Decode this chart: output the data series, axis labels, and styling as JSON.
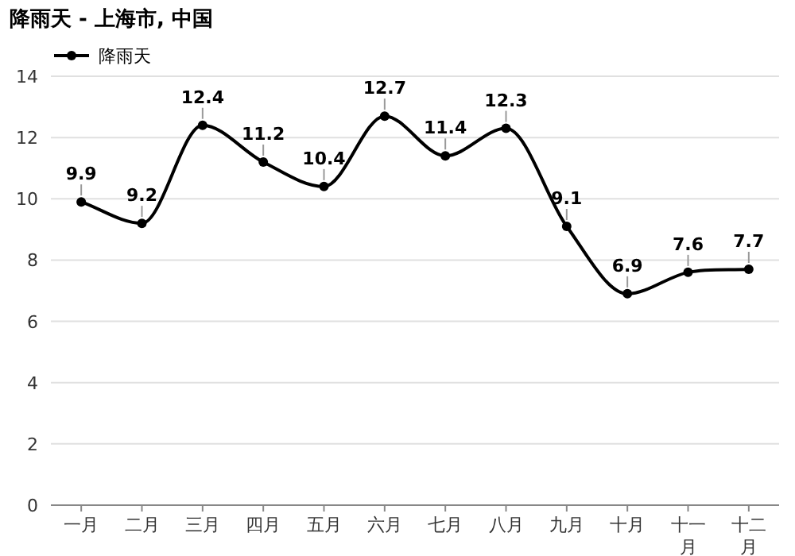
{
  "chart_data": {
    "type": "line",
    "title": "降雨天 - 上海市, 中国",
    "categories": [
      "一月",
      "二月",
      "三月",
      "四月",
      "五月",
      "六月",
      "七月",
      "八月",
      "九月",
      "十月",
      "十一月",
      "十二月"
    ],
    "series": [
      {
        "name": "降雨天",
        "color": "#000000",
        "values": [
          9.9,
          9.2,
          12.4,
          11.2,
          10.4,
          12.7,
          11.4,
          12.3,
          9.1,
          6.9,
          7.6,
          7.7
        ]
      }
    ],
    "ylim": [
      0,
      14
    ],
    "yticks": [
      0,
      2,
      4,
      6,
      8,
      10,
      12,
      14
    ],
    "grid": "y",
    "legend": "top left",
    "marker": "circle",
    "line_style": "solid",
    "data_labels": true
  }
}
